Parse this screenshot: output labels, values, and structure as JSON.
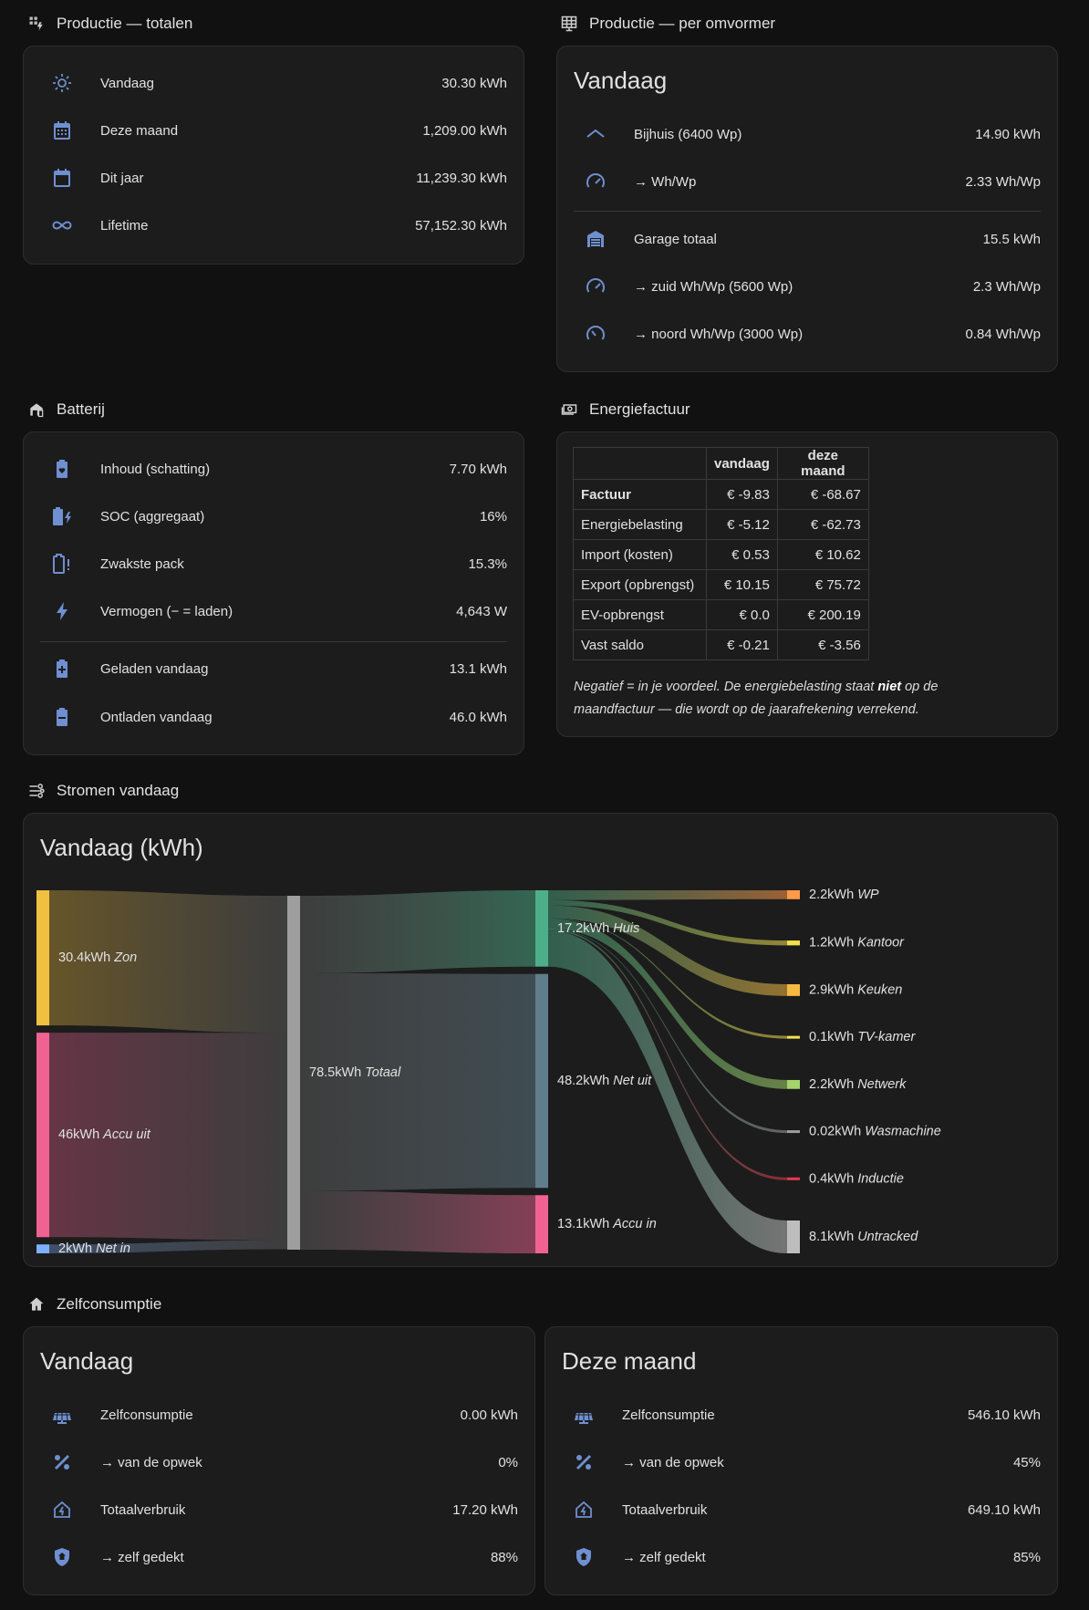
{
  "sections": {
    "prod_totals": "Productie — totalen",
    "prod_inverter": "Productie — per omvormer",
    "battery": "Batterij",
    "invoice": "Energiefactuur",
    "flows": "Stromen vandaag",
    "selfcons": "Zelfconsumptie"
  },
  "prod_totals": [
    {
      "icon": "sun-icon",
      "label": "Vandaag",
      "value": "30.30 kWh"
    },
    {
      "icon": "calendar-month-icon",
      "label": "Deze maand",
      "value": "1,209.00 kWh"
    },
    {
      "icon": "calendar-icon",
      "label": "Dit jaar",
      "value": "11,239.30 kWh"
    },
    {
      "icon": "infinity-icon",
      "label": "Lifetime",
      "value": "57,152.30 kWh"
    }
  ],
  "prod_inverter": {
    "title": "Vandaag",
    "rows": [
      {
        "icon": "roof-icon",
        "label": "Bijhuis (6400 Wp)",
        "value": "14.90 kWh"
      },
      {
        "icon": "gauge-icon",
        "label": "→ Wh/Wp",
        "value": "2.33 Wh/Wp"
      },
      {
        "icon": "garage-icon",
        "label": "Garage totaal",
        "value": "15.5 kWh"
      },
      {
        "icon": "gauge-icon",
        "label": "→ zuid Wh/Wp (5600 Wp)",
        "value": "2.3 Wh/Wp"
      },
      {
        "icon": "gauge-low-icon",
        "label": "→ noord Wh/Wp (3000 Wp)",
        "value": "0.84 Wh/Wp"
      }
    ]
  },
  "battery": [
    {
      "icon": "battery-heart-icon",
      "label": "Inhoud (schatting)",
      "value": "7.70 kWh"
    },
    {
      "icon": "battery-charging-icon",
      "label": "SOC (aggregaat)",
      "value": "16%"
    },
    {
      "icon": "battery-alert-icon",
      "label": "Zwakste pack",
      "value": "15.3%"
    },
    {
      "icon": "lightning-icon",
      "label": "Vermogen (− = laden)",
      "value": "4,643 W"
    },
    {
      "icon": "battery-plus-icon",
      "label": "Geladen vandaag",
      "value": "13.1 kWh"
    },
    {
      "icon": "battery-minus-icon",
      "label": "Ontladen vandaag",
      "value": "46.0 kWh"
    }
  ],
  "invoice": {
    "headers": [
      "",
      "vandaag",
      "deze maand"
    ],
    "rows": [
      {
        "label": "Factuur",
        "today": "€ -9.83",
        "month": "€ -68.67"
      },
      {
        "label": "Energiebelasting",
        "today": "€ -5.12",
        "month": "€ -62.73"
      },
      {
        "label": "Import (kosten)",
        "today": "€ 0.53",
        "month": "€ 10.62"
      },
      {
        "label": "Export (opbrengst)",
        "today": "€ 10.15",
        "month": "€ 75.72"
      },
      {
        "label": "EV-opbrengst",
        "today": "€ 0.0",
        "month": "€ 200.19"
      },
      {
        "label": "Vast saldo",
        "today": "€ -0.21",
        "month": "€ -3.56"
      }
    ],
    "note_a": "Negatief = in je voordeel. De energiebelasting staat ",
    "note_b": "niet",
    "note_c": " op de maandfactuur — die wordt op de jaarafrekening verrekend."
  },
  "flows": {
    "title": "Vandaag (kWh)",
    "unit": "kWh",
    "sources": [
      {
        "name": "Zon",
        "value": 30.4,
        "text": "30.4",
        "color": "#f0c040"
      },
      {
        "name": "Accu uit",
        "value": 46,
        "text": "46",
        "color": "#f06292"
      },
      {
        "name": "Net in",
        "value": 2,
        "text": "2",
        "color": "#7fb0ff"
      }
    ],
    "total": {
      "name": "Totaal",
      "value": 78.5,
      "text": "78.5",
      "color": "#9e9e9e"
    },
    "mid": [
      {
        "name": "Huis",
        "value": 17.2,
        "text": "17.2",
        "color": "#4caf8a"
      },
      {
        "name": "Net uit",
        "value": 48.2,
        "text": "48.2",
        "color": "#607d8b"
      },
      {
        "name": "Accu in",
        "value": 13.1,
        "text": "13.1",
        "color": "#f06292"
      }
    ],
    "consumers": [
      {
        "name": "WP",
        "value": 2.2,
        "text": "2.2",
        "color": "#ff9a4a"
      },
      {
        "name": "Kantoor",
        "value": 1.2,
        "text": "1.2",
        "color": "#f4e04d"
      },
      {
        "name": "Keuken",
        "value": 2.9,
        "text": "2.9",
        "color": "#f5b942"
      },
      {
        "name": "TV-kamer",
        "value": 0.1,
        "text": "0.1",
        "color": "#f4e04d"
      },
      {
        "name": "Netwerk",
        "value": 2.2,
        "text": "2.2",
        "color": "#a5d46a"
      },
      {
        "name": "Wasmachine",
        "value": 0.02,
        "text": "0.02",
        "color": "#9e9e9e"
      },
      {
        "name": "Inductie",
        "value": 0.4,
        "text": "0.4",
        "color": "#e53950"
      },
      {
        "name": "Untracked",
        "value": 8.1,
        "text": "8.1",
        "color": "#bdbdbd"
      }
    ]
  },
  "selfcons": {
    "today": {
      "title": "Vandaag",
      "rows": [
        {
          "icon": "solar-panel-icon",
          "label": "Zelfconsumptie",
          "value": "0.00 kWh"
        },
        {
          "icon": "percent-icon",
          "label": "→ van de opwek",
          "value": "0%"
        },
        {
          "icon": "home-lightning-icon",
          "label": "Totaalverbruik",
          "value": "17.20 kWh"
        },
        {
          "icon": "shield-home-icon",
          "label": "→ zelf gedekt",
          "value": "88%"
        }
      ]
    },
    "month": {
      "title": "Deze maand",
      "rows": [
        {
          "icon": "solar-panel-icon",
          "label": "Zelfconsumptie",
          "value": "546.10 kWh"
        },
        {
          "icon": "percent-icon",
          "label": "→ van de opwek",
          "value": "45%"
        },
        {
          "icon": "home-lightning-icon",
          "label": "Totaalverbruik",
          "value": "649.10 kWh"
        },
        {
          "icon": "shield-home-icon",
          "label": "→ zelf gedekt",
          "value": "85%"
        }
      ]
    }
  }
}
